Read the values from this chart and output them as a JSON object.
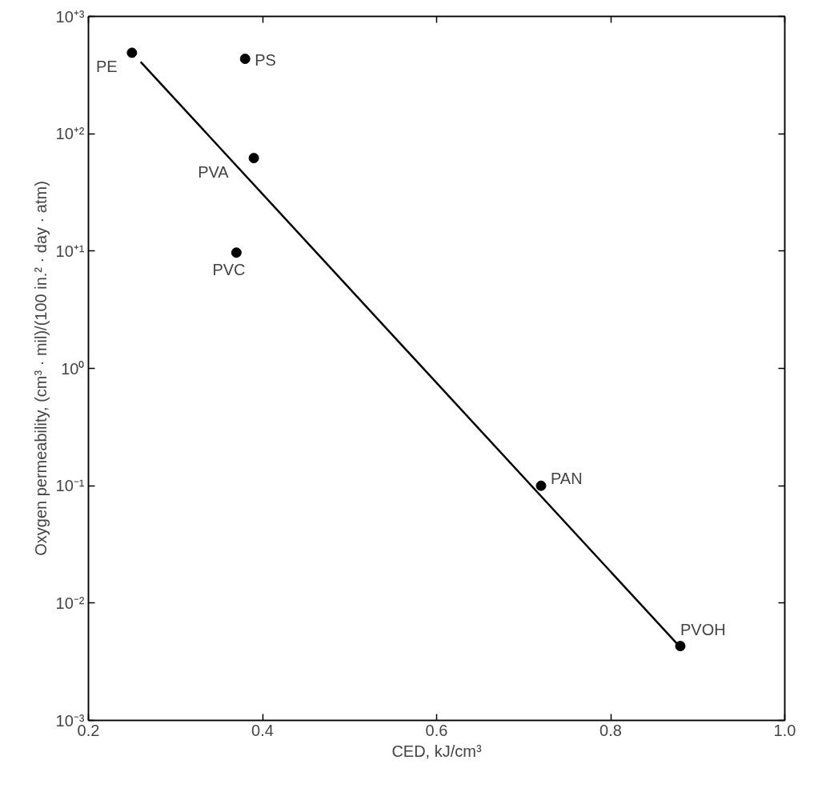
{
  "chart_data": {
    "type": "scatter",
    "xlabel": "CED, kJ/cm³",
    "ylabel": "Oxygen permeability, (cm³ · mil)/(100 in.² · day · atm)",
    "log": "y",
    "grid": false,
    "marker": "circle",
    "xlim": [
      0.2,
      1.0
    ],
    "xticks": [
      0.2,
      0.4,
      0.6,
      0.8,
      {
        "value": 1,
        "label": "1.0"
      }
    ],
    "ylim": [
      0.001,
      1000
    ],
    "yticks": [
      {
        "value": 0.001,
        "label": "10⁻³"
      },
      {
        "value": 0.01,
        "label": "10⁻²"
      },
      {
        "value": 0.1,
        "label": "10⁻¹"
      },
      {
        "value": 1,
        "label": "10⁰"
      },
      {
        "value": 10,
        "label": "10⁺¹"
      },
      {
        "value": 100,
        "label": "10⁺²"
      },
      {
        "value": 1000,
        "label": "10⁺³"
      }
    ],
    "series": [
      {
        "color": "#000000",
        "x": [
          0.25,
          0.38,
          0.39,
          0.37,
          0.72,
          0.88
        ],
        "values": [
          490,
          435,
          62,
          9.7,
          0.1,
          0.0043
        ]
      },
      {
        "type": "line",
        "color": "#000000",
        "line_style": "solid",
        "marker": "none",
        "x": [
          0.26,
          0.88
        ],
        "values": [
          410,
          0.0042
        ]
      }
    ],
    "annotations": [
      {
        "text": "PE",
        "x": 0.25,
        "y": 490
      },
      {
        "text": "PS",
        "x": 0.38,
        "y": 435
      },
      {
        "text": "PVA",
        "x": 0.39,
        "y": 62
      },
      {
        "text": "PVC",
        "x": 0.37,
        "y": 9.7
      },
      {
        "text": "PAN",
        "x": 0.72,
        "y": 0.1
      },
      {
        "text": "PVOH",
        "x": 0.88,
        "y": 0.0043
      }
    ]
  }
}
